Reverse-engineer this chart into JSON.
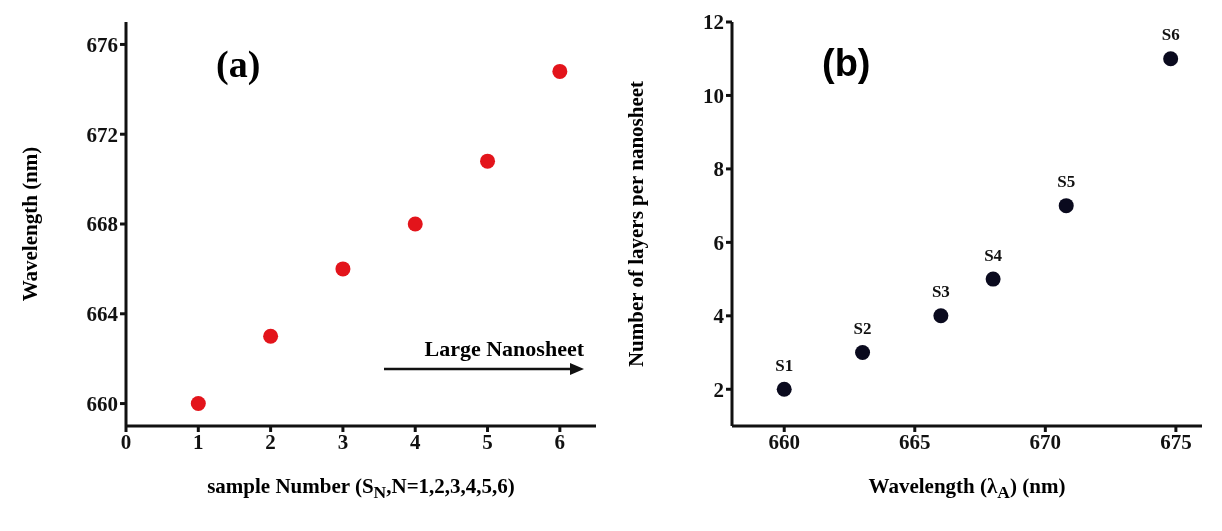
{
  "chart_data": [
    {
      "type": "scatter",
      "title": "(a)",
      "xlabel": "sample Number (S$_{N}$,N=1,2,3,4,5,6)",
      "ylabel": "Wavelength (nm)",
      "x": [
        1,
        2,
        3,
        4,
        5,
        6
      ],
      "values": [
        660,
        663,
        666,
        668,
        670.8,
        674.8
      ],
      "color": "#e3141b",
      "marker": "circle",
      "xlim": [
        0,
        6.5
      ],
      "ylim": [
        659,
        677
      ],
      "xticks": [
        0,
        1,
        2,
        3,
        4,
        5,
        6
      ],
      "yticks": [
        660,
        664,
        668,
        672,
        676
      ],
      "annotations": [
        "Large Nanosheet"
      ]
    },
    {
      "type": "scatter",
      "title": "(b)",
      "xlabel": "Wavelength (λ$_{A}$) (nm)",
      "ylabel": "Number of layers per nanosheet",
      "x": [
        660,
        663,
        666,
        668,
        670.8,
        674.8
      ],
      "values": [
        2,
        3,
        4,
        5,
        7,
        11
      ],
      "color": "#0a0a1e",
      "marker": "circle",
      "value_labels": [
        "S1",
        "S2",
        "S3",
        "S4",
        "S5",
        "S6"
      ],
      "xlim": [
        658,
        676
      ],
      "ylim": [
        1,
        12
      ],
      "xticks": [
        660,
        665,
        670,
        675
      ],
      "yticks": [
        2,
        4,
        6,
        8,
        10,
        12
      ]
    }
  ]
}
